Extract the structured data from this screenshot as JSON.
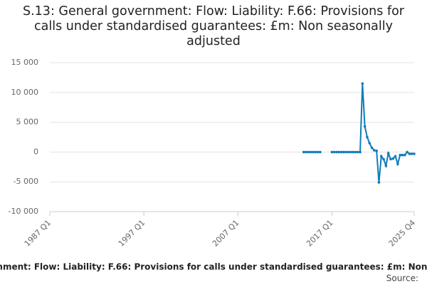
{
  "chart_data": {
    "type": "line",
    "title": "S.13: General government: Flow: Liability: F.66: Provisions for calls under standardised guarantees: £m: Non seasonally adjusted",
    "source_label": "Source:",
    "color": "#0f7cb8",
    "grid": true,
    "ylim": [
      -10000,
      15000
    ],
    "yticks": [
      {
        "value": -10000,
        "label": "-10 000"
      },
      {
        "value": -5000,
        "label": "-5 000"
      },
      0,
      {
        "value": 5000,
        "label": "5 000"
      },
      {
        "value": 10000,
        "label": "10 000"
      },
      {
        "value": 15000,
        "label": "15 000"
      }
    ],
    "categories": [
      "1987 Q1",
      null,
      null,
      null,
      null,
      null,
      null,
      null,
      null,
      null,
      null,
      null,
      null,
      null,
      null,
      null,
      null,
      null,
      null,
      null,
      null,
      null,
      null,
      null,
      null,
      null,
      null,
      null,
      null,
      null,
      null,
      null,
      null,
      null,
      null,
      null,
      null,
      null,
      null,
      null,
      "1997 Q1",
      null,
      null,
      null,
      null,
      null,
      null,
      null,
      null,
      null,
      null,
      null,
      null,
      null,
      null,
      null,
      null,
      null,
      null,
      null,
      null,
      null,
      null,
      null,
      null,
      null,
      null,
      null,
      null,
      null,
      null,
      null,
      null,
      null,
      null,
      null,
      null,
      null,
      null,
      null,
      "2007 Q1",
      null,
      null,
      null,
      null,
      null,
      null,
      null,
      null,
      null,
      null,
      null,
      null,
      null,
      null,
      null,
      null,
      null,
      null,
      null,
      null,
      null,
      null,
      null,
      null,
      null,
      null,
      null,
      null,
      null,
      null,
      null,
      null,
      null,
      null,
      null,
      null,
      null,
      null,
      null,
      "2017 Q1",
      null,
      null,
      null,
      null,
      null,
      null,
      null,
      null,
      null,
      null,
      null,
      null,
      null,
      null,
      null,
      null,
      null,
      null,
      null,
      null,
      null,
      null,
      null,
      null,
      null,
      null,
      null,
      null,
      null,
      null,
      null,
      null,
      null,
      null,
      "2025 Q4"
    ],
    "values": [
      null,
      null,
      null,
      null,
      null,
      null,
      null,
      null,
      null,
      null,
      null,
      null,
      null,
      null,
      null,
      null,
      null,
      null,
      null,
      null,
      null,
      null,
      null,
      null,
      null,
      null,
      null,
      null,
      null,
      null,
      null,
      null,
      null,
      null,
      null,
      null,
      null,
      null,
      null,
      null,
      null,
      null,
      null,
      null,
      null,
      null,
      null,
      null,
      null,
      null,
      null,
      null,
      null,
      null,
      null,
      null,
      null,
      null,
      null,
      null,
      null,
      null,
      null,
      null,
      null,
      null,
      null,
      null,
      null,
      null,
      null,
      null,
      null,
      null,
      null,
      null,
      null,
      null,
      null,
      null,
      null,
      null,
      null,
      null,
      null,
      null,
      null,
      null,
      null,
      null,
      null,
      null,
      null,
      null,
      null,
      null,
      null,
      null,
      null,
      null,
      null,
      null,
      null,
      null,
      null,
      null,
      null,
      null,
      0,
      0,
      0,
      0,
      0,
      0,
      0,
      0,
      null,
      null,
      null,
      null,
      0,
      0,
      0,
      0,
      0,
      0,
      0,
      0,
      0,
      0,
      0,
      0,
      0,
      11500,
      4300,
      2500,
      1500,
      700,
      300,
      200,
      -5100,
      -700,
      -1200,
      -2300,
      -200,
      -1200,
      -1100,
      -700,
      -2000,
      -500,
      -500,
      -500,
      0,
      -300,
      -300,
      -300
    ]
  }
}
